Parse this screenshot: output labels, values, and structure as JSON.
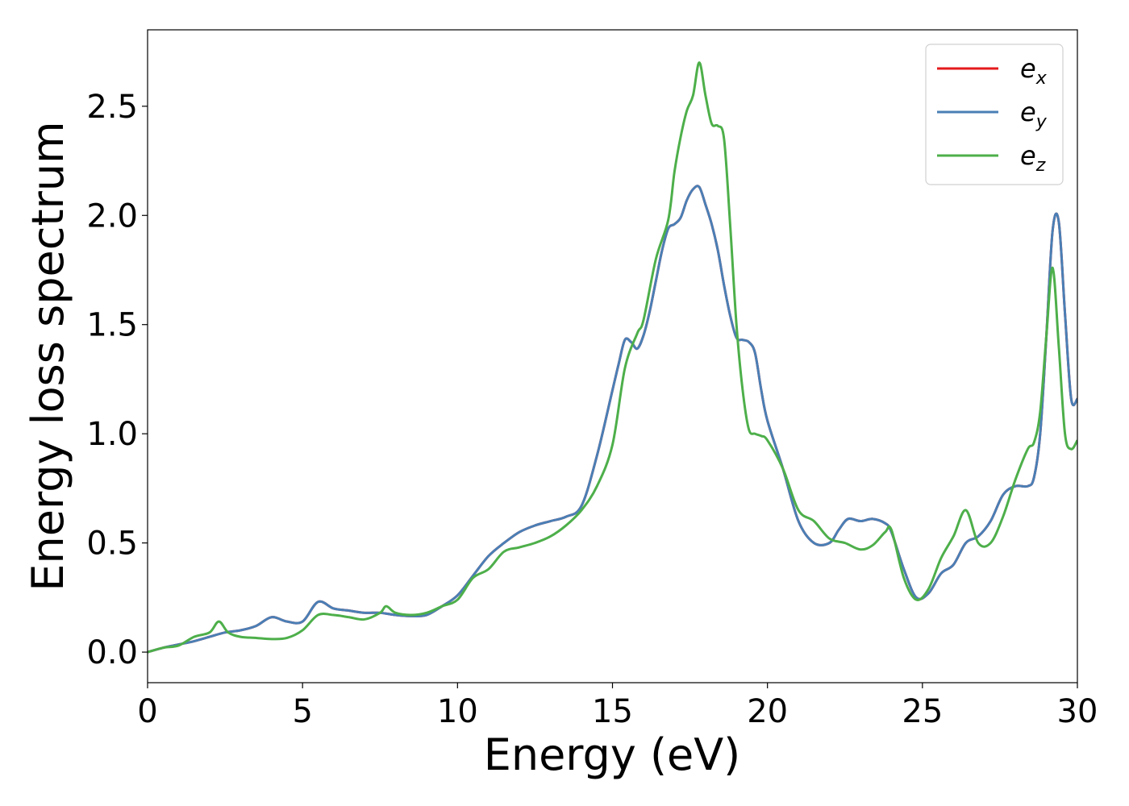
{
  "chart_data": {
    "type": "line",
    "title": "",
    "xlabel": "Energy (eV)",
    "ylabel": "Energy loss spectrum",
    "xlim": [
      0,
      30
    ],
    "ylim": [
      -0.14,
      2.85
    ],
    "xticks": [
      0,
      5,
      10,
      15,
      20,
      25,
      30
    ],
    "xtick_labels": [
      "0",
      "5",
      "10",
      "15",
      "20",
      "25",
      "30"
    ],
    "yticks": [
      0.0,
      0.5,
      1.0,
      1.5,
      2.0,
      2.5
    ],
    "ytick_labels": [
      "0.0",
      "0.5",
      "1.0",
      "1.5",
      "2.0",
      "2.5"
    ],
    "grid": false,
    "legend_position": "top-right",
    "series": [
      {
        "name": "e",
        "subscript": "x",
        "color": "#e41a1c",
        "x": [
          0,
          0.5,
          1,
          1.5,
          2,
          2.5,
          3,
          3.5,
          4,
          4.5,
          5,
          5.5,
          6,
          6.5,
          7,
          7.5,
          8,
          8.5,
          9,
          9.5,
          10,
          10.5,
          11,
          11.5,
          12,
          12.5,
          13,
          13.5,
          14,
          14.5,
          15,
          15.2,
          15.4,
          15.6,
          15.8,
          16,
          16.2,
          16.4,
          16.6,
          16.8,
          17,
          17.2,
          17.4,
          17.6,
          17.8,
          18,
          18.2,
          18.4,
          18.6,
          18.8,
          19,
          19.2,
          19.4,
          19.6,
          19.8,
          20,
          20.5,
          21,
          21.5,
          22,
          22.3,
          22.6,
          23,
          23.4,
          23.8,
          24,
          24.4,
          24.8,
          25.2,
          25.6,
          26,
          26.4,
          26.8,
          27.2,
          27.6,
          28,
          28.4,
          28.6,
          28.8,
          29,
          29.2,
          29.4,
          29.6,
          29.8,
          30
        ],
        "values": [
          0,
          0.02,
          0.035,
          0.05,
          0.07,
          0.09,
          0.1,
          0.12,
          0.16,
          0.14,
          0.14,
          0.23,
          0.2,
          0.19,
          0.18,
          0.18,
          0.17,
          0.165,
          0.17,
          0.21,
          0.26,
          0.35,
          0.44,
          0.5,
          0.55,
          0.58,
          0.6,
          0.62,
          0.67,
          0.9,
          1.2,
          1.32,
          1.43,
          1.42,
          1.39,
          1.45,
          1.56,
          1.7,
          1.84,
          1.94,
          1.96,
          1.99,
          2.07,
          2.12,
          2.13,
          2.05,
          1.96,
          1.84,
          1.68,
          1.54,
          1.44,
          1.43,
          1.42,
          1.37,
          1.2,
          1.06,
          0.84,
          0.6,
          0.5,
          0.5,
          0.56,
          0.61,
          0.6,
          0.61,
          0.59,
          0.55,
          0.38,
          0.25,
          0.27,
          0.36,
          0.4,
          0.5,
          0.53,
          0.6,
          0.72,
          0.76,
          0.76,
          0.8,
          1.0,
          1.45,
          1.93,
          1.97,
          1.55,
          1.16,
          1.16
        ]
      },
      {
        "name": "e",
        "subscript": "y",
        "color": "#4a7fb5",
        "x": [
          0,
          0.5,
          1,
          1.5,
          2,
          2.5,
          3,
          3.5,
          4,
          4.5,
          5,
          5.5,
          6,
          6.5,
          7,
          7.5,
          8,
          8.5,
          9,
          9.5,
          10,
          10.5,
          11,
          11.5,
          12,
          12.5,
          13,
          13.5,
          14,
          14.5,
          15,
          15.2,
          15.4,
          15.6,
          15.8,
          16,
          16.2,
          16.4,
          16.6,
          16.8,
          17,
          17.2,
          17.4,
          17.6,
          17.8,
          18,
          18.2,
          18.4,
          18.6,
          18.8,
          19,
          19.2,
          19.4,
          19.6,
          19.8,
          20,
          20.5,
          21,
          21.5,
          22,
          22.3,
          22.6,
          23,
          23.4,
          23.8,
          24,
          24.4,
          24.8,
          25.2,
          25.6,
          26,
          26.4,
          26.8,
          27.2,
          27.6,
          28,
          28.4,
          28.6,
          28.8,
          29,
          29.2,
          29.4,
          29.6,
          29.8,
          30
        ],
        "values": [
          0,
          0.02,
          0.035,
          0.05,
          0.07,
          0.09,
          0.1,
          0.12,
          0.16,
          0.14,
          0.14,
          0.23,
          0.2,
          0.19,
          0.18,
          0.18,
          0.17,
          0.165,
          0.17,
          0.21,
          0.26,
          0.35,
          0.44,
          0.5,
          0.55,
          0.58,
          0.6,
          0.62,
          0.67,
          0.9,
          1.2,
          1.32,
          1.43,
          1.42,
          1.39,
          1.45,
          1.56,
          1.7,
          1.84,
          1.94,
          1.96,
          1.99,
          2.07,
          2.12,
          2.13,
          2.05,
          1.96,
          1.84,
          1.68,
          1.54,
          1.44,
          1.43,
          1.42,
          1.37,
          1.2,
          1.06,
          0.84,
          0.6,
          0.5,
          0.5,
          0.56,
          0.61,
          0.6,
          0.61,
          0.59,
          0.55,
          0.38,
          0.25,
          0.27,
          0.36,
          0.4,
          0.5,
          0.53,
          0.6,
          0.72,
          0.76,
          0.76,
          0.8,
          1.0,
          1.45,
          1.93,
          1.97,
          1.55,
          1.16,
          1.16
        ]
      },
      {
        "name": "e",
        "subscript": "z",
        "color": "#4daf4a",
        "x": [
          0,
          0.5,
          1,
          1.5,
          2,
          2.3,
          2.6,
          3,
          3.5,
          4,
          4.5,
          5,
          5.5,
          6,
          6.5,
          7,
          7.5,
          7.7,
          8,
          8.5,
          9,
          9.5,
          10,
          10.5,
          11,
          11.5,
          12,
          12.5,
          13,
          13.5,
          14,
          14.5,
          15,
          15.4,
          15.8,
          16,
          16.4,
          16.8,
          17,
          17.2,
          17.4,
          17.6,
          17.8,
          18,
          18.2,
          18.4,
          18.6,
          18.8,
          19,
          19.2,
          19.4,
          19.6,
          19.8,
          20,
          20.5,
          21,
          21.5,
          22,
          22.5,
          23,
          23.4,
          23.8,
          24,
          24.4,
          24.8,
          25.2,
          25.6,
          26,
          26.4,
          26.8,
          27.2,
          27.6,
          28,
          28.4,
          28.6,
          28.8,
          29,
          29.2,
          29.4,
          29.6,
          29.8,
          30
        ],
        "values": [
          0,
          0.02,
          0.03,
          0.07,
          0.09,
          0.14,
          0.09,
          0.07,
          0.065,
          0.06,
          0.065,
          0.1,
          0.17,
          0.17,
          0.16,
          0.15,
          0.18,
          0.21,
          0.18,
          0.17,
          0.18,
          0.21,
          0.24,
          0.34,
          0.38,
          0.46,
          0.48,
          0.5,
          0.53,
          0.58,
          0.65,
          0.76,
          0.95,
          1.3,
          1.46,
          1.52,
          1.8,
          1.98,
          2.2,
          2.36,
          2.48,
          2.55,
          2.7,
          2.55,
          2.42,
          2.41,
          2.35,
          1.95,
          1.5,
          1.2,
          1.02,
          1.0,
          0.99,
          0.97,
          0.84,
          0.65,
          0.6,
          0.52,
          0.5,
          0.47,
          0.49,
          0.55,
          0.56,
          0.34,
          0.24,
          0.29,
          0.43,
          0.53,
          0.65,
          0.5,
          0.5,
          0.62,
          0.79,
          0.93,
          0.96,
          1.1,
          1.45,
          1.76,
          1.4,
          1.0,
          0.93,
          0.97
        ]
      }
    ]
  }
}
